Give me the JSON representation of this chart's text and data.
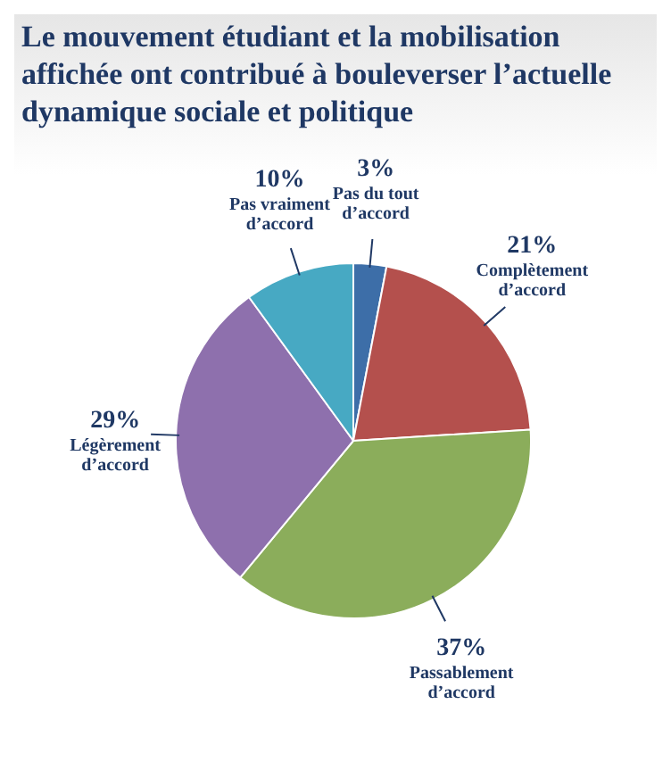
{
  "chart_data": {
    "type": "pie",
    "title": "Le mouvement étudiant et la mobilisation affichée ont contribué à bouleverser l’actuelle dynamique sociale et politique",
    "categories": [
      "Pas du tout d’accord",
      "Complètement d’accord",
      "Passablement d’accord",
      "Légèrement d’accord",
      "Pas vraiment d’accord"
    ],
    "values": [
      3,
      21,
      37,
      29,
      10
    ],
    "colors": [
      "#3d6ea8",
      "#b4504d",
      "#8bad5b",
      "#8e70ad",
      "#47a9c3"
    ],
    "value_labels": [
      "3%",
      "21%",
      "37%",
      "29%",
      "10%"
    ],
    "legend": false
  }
}
